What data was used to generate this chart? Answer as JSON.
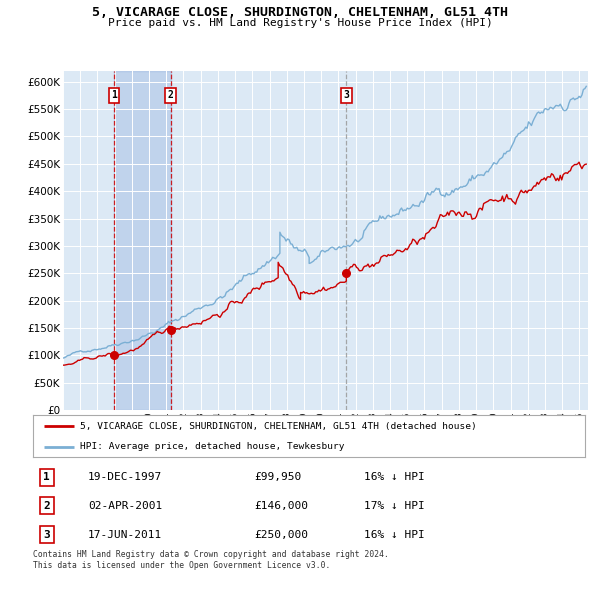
{
  "title": "5, VICARAGE CLOSE, SHURDINGTON, CHELTENHAM, GL51 4TH",
  "subtitle": "Price paid vs. HM Land Registry's House Price Index (HPI)",
  "legend_property": "5, VICARAGE CLOSE, SHURDINGTON, CHELTENHAM, GL51 4TH (detached house)",
  "legend_hpi": "HPI: Average price, detached house, Tewkesbury",
  "property_color": "#cc0000",
  "hpi_color": "#7bafd4",
  "background_color": "#dce9f5",
  "grid_color": "#ffffff",
  "sale_points": [
    {
      "label": "1",
      "date_str": "19-DEC-1997",
      "price": 99950,
      "x_year": 1997.97,
      "hpi_pct": "16% ↓ HPI"
    },
    {
      "label": "2",
      "date_str": "02-APR-2001",
      "price": 146000,
      "x_year": 2001.25,
      "hpi_pct": "17% ↓ HPI"
    },
    {
      "label": "3",
      "date_str": "17-JUN-2011",
      "price": 250000,
      "x_year": 2011.46,
      "hpi_pct": "16% ↓ HPI"
    }
  ],
  "footnote1": "Contains HM Land Registry data © Crown copyright and database right 2024.",
  "footnote2": "This data is licensed under the Open Government Licence v3.0.",
  "ylim": [
    0,
    620000
  ],
  "xlim_start": 1995.0,
  "xlim_end": 2025.5,
  "yticks": [
    0,
    50000,
    100000,
    150000,
    200000,
    250000,
    300000,
    350000,
    400000,
    450000,
    500000,
    550000,
    600000
  ],
  "ytick_labels": [
    "£0",
    "£50K",
    "£100K",
    "£150K",
    "£200K",
    "£250K",
    "£300K",
    "£350K",
    "£400K",
    "£450K",
    "£500K",
    "£550K",
    "£600K"
  ]
}
